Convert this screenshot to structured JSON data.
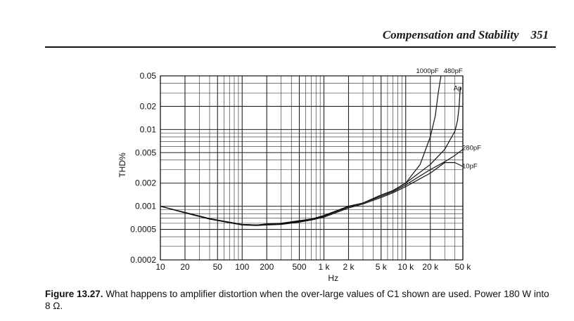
{
  "header": {
    "title": "Compensation and Stability",
    "page_number": "351"
  },
  "caption": {
    "label": "Figure 13.27.",
    "text": "What happens to amplifier distortion when the over-large values of C1 shown are used. Power 180 W into 8 Ω."
  },
  "chart_data": {
    "type": "line",
    "xlabel": "Hz",
    "ylabel": "THD%",
    "x_scale": "log",
    "y_scale": "log",
    "xlim": [
      10,
      50000
    ],
    "ylim": [
      0.0002,
      0.05
    ],
    "grid": true,
    "x_ticks": [
      {
        "value": 10,
        "label": "10"
      },
      {
        "value": 20,
        "label": "20"
      },
      {
        "value": 50,
        "label": "50"
      },
      {
        "value": 100,
        "label": "100"
      },
      {
        "value": 200,
        "label": "200"
      },
      {
        "value": 500,
        "label": "500"
      },
      {
        "value": 1000,
        "label": "1 k"
      },
      {
        "value": 2000,
        "label": "2 k"
      },
      {
        "value": 5000,
        "label": "5 k"
      },
      {
        "value": 10000,
        "label": "10 k"
      },
      {
        "value": 20000,
        "label": "20 k"
      },
      {
        "value": 50000,
        "label": "50 k"
      }
    ],
    "y_ticks": [
      {
        "value": 0.05,
        "label": "0.05"
      },
      {
        "value": 0.02,
        "label": "0.02"
      },
      {
        "value": 0.01,
        "label": "0.01"
      },
      {
        "value": 0.005,
        "label": "0.005"
      },
      {
        "value": 0.002,
        "label": "0.002"
      },
      {
        "value": 0.001,
        "label": "0.001"
      },
      {
        "value": 0.0005,
        "label": "0.0005"
      },
      {
        "value": 0.0002,
        "label": "0.0002"
      }
    ],
    "annotations": [
      {
        "text": "1000pF",
        "x": 20000,
        "y": 0.05
      },
      {
        "text": "480pF",
        "x": 45000,
        "y": 0.05
      },
      {
        "text": "Ap",
        "x": 40000,
        "y": 0.04
      },
      {
        "text": "280pF",
        "x": 52000,
        "y": 0.0055
      },
      {
        "text": "10pF",
        "x": 52000,
        "y": 0.0034
      }
    ],
    "series": [
      {
        "name": "10pF",
        "x": [
          10,
          20,
          40,
          70,
          100,
          150,
          200,
          300,
          500,
          700,
          1000,
          2000,
          3000,
          5000,
          7000,
          10000,
          20000,
          30000,
          40000,
          50000
        ],
        "y": [
          0.001,
          0.00082,
          0.00068,
          0.00061,
          0.00057,
          0.00056,
          0.00057,
          0.00058,
          0.00062,
          0.00066,
          0.00072,
          0.00095,
          0.00107,
          0.0013,
          0.0015,
          0.0018,
          0.0027,
          0.0037,
          0.0037,
          0.0033
        ]
      },
      {
        "name": "280pF",
        "x": [
          10,
          20,
          40,
          70,
          100,
          150,
          200,
          300,
          500,
          700,
          1000,
          2000,
          3000,
          5000,
          7000,
          10000,
          20000,
          30000,
          40000,
          50000
        ],
        "y": [
          0.001,
          0.00083,
          0.00069,
          0.00062,
          0.00058,
          0.00057,
          0.00058,
          0.00059,
          0.00063,
          0.00067,
          0.00074,
          0.00098,
          0.0011,
          0.00135,
          0.00155,
          0.0019,
          0.003,
          0.0038,
          0.0046,
          0.0055
        ]
      },
      {
        "name": "480pF",
        "x": [
          10,
          20,
          40,
          70,
          100,
          150,
          200,
          300,
          500,
          700,
          1000,
          2000,
          3000,
          5000,
          7000,
          10000,
          20000,
          30000,
          40000,
          43000,
          45000,
          46000,
          47000
        ],
        "y": [
          0.001,
          0.00082,
          0.00068,
          0.00062,
          0.00058,
          0.00057,
          0.00058,
          0.0006,
          0.00064,
          0.00068,
          0.00075,
          0.001,
          0.0011,
          0.0014,
          0.0016,
          0.002,
          0.0035,
          0.0055,
          0.0095,
          0.013,
          0.02,
          0.03,
          0.036
        ]
      },
      {
        "name": "1000pF",
        "x": [
          10,
          20,
          40,
          70,
          100,
          150,
          200,
          300,
          500,
          700,
          1000,
          2000,
          3000,
          5000,
          7000,
          10000,
          15000,
          20000,
          23000,
          25000,
          27000
        ],
        "y": [
          0.001,
          0.00083,
          0.00069,
          0.00062,
          0.00058,
          0.00057,
          0.00059,
          0.0006,
          0.00065,
          0.00068,
          0.00076,
          0.001,
          0.0011,
          0.0014,
          0.0016,
          0.002,
          0.0035,
          0.008,
          0.015,
          0.03,
          0.05
        ]
      }
    ]
  }
}
